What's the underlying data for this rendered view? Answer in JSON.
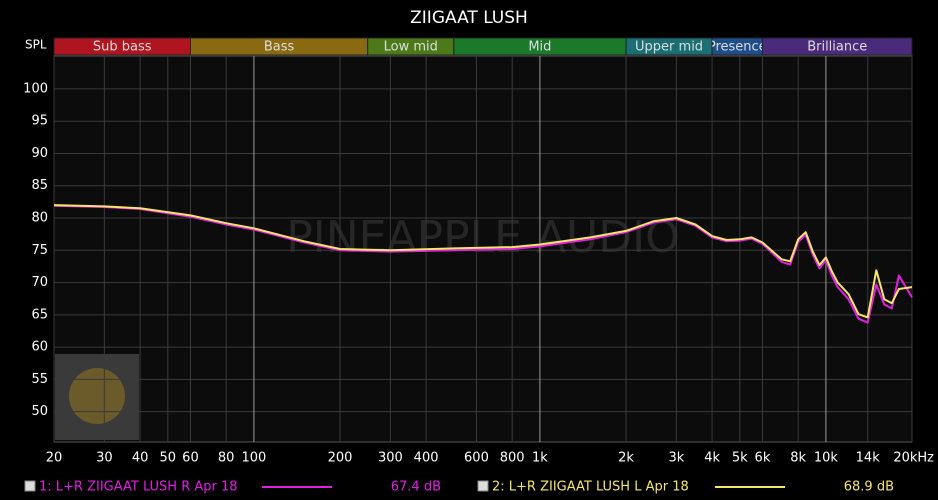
{
  "chart_data": {
    "type": "line",
    "title": "ZIIGAAT LUSH",
    "y_label": "SPL",
    "watermark": "PINEAPPLE AUDIO",
    "log_x": true,
    "grid": true,
    "xlim": [
      20,
      20000
    ],
    "ylim": [
      45.3,
      105.1
    ],
    "xticks": [
      {
        "value": 20,
        "label": "20"
      },
      {
        "value": 30,
        "label": "30"
      },
      {
        "value": 40,
        "label": "40"
      },
      {
        "value": 50,
        "label": "50"
      },
      {
        "value": 60,
        "label": "60"
      },
      {
        "value": 80,
        "label": "80"
      },
      {
        "value": 100,
        "label": "100"
      },
      {
        "value": 200,
        "label": "200"
      },
      {
        "value": 300,
        "label": "300"
      },
      {
        "value": 400,
        "label": "400"
      },
      {
        "value": 600,
        "label": "600"
      },
      {
        "value": 800,
        "label": "800"
      },
      {
        "value": 1000,
        "label": "1k"
      },
      {
        "value": 2000,
        "label": "2k"
      },
      {
        "value": 3000,
        "label": "3k"
      },
      {
        "value": 4000,
        "label": "4k"
      },
      {
        "value": 5000,
        "label": "5k"
      },
      {
        "value": 6000,
        "label": "6k"
      },
      {
        "value": 8000,
        "label": "8k"
      },
      {
        "value": 10000,
        "label": "10k"
      },
      {
        "value": 14000,
        "label": "14k"
      },
      {
        "value": 20000,
        "label": "20kHz"
      }
    ],
    "yticks": [
      50,
      55,
      60,
      65,
      70,
      75,
      80,
      85,
      90,
      95,
      100
    ],
    "bands": [
      {
        "name": "Sub bass",
        "from": 20,
        "to": 60,
        "color": "#b0141e"
      },
      {
        "name": "Bass",
        "from": 60,
        "to": 250,
        "color": "#8a6a10"
      },
      {
        "name": "Low mid",
        "from": 250,
        "to": 500,
        "color": "#4d7a18"
      },
      {
        "name": "Mid",
        "from": 500,
        "to": 2000,
        "color": "#1a7a2a"
      },
      {
        "name": "Upper mid",
        "from": 2000,
        "to": 4000,
        "color": "#1a6e74"
      },
      {
        "name": "Presence",
        "from": 4000,
        "to": 6000,
        "color": "#1f4e8a"
      },
      {
        "name": "Brilliance",
        "from": 6000,
        "to": 20000,
        "color": "#4a2a7a"
      }
    ],
    "x": [
      20,
      30,
      40,
      60,
      80,
      100,
      150,
      200,
      300,
      500,
      800,
      1000,
      1500,
      2000,
      2500,
      3000,
      3500,
      4000,
      4500,
      5000,
      5500,
      6000,
      7000,
      7500,
      8000,
      8500,
      9000,
      9500,
      10000,
      10500,
      11000,
      12000,
      13000,
      14000,
      15000,
      16000,
      17000,
      18000,
      20000
    ],
    "series": [
      {
        "name": "1: L+R ZIIGAAT LUSH R Apr 18",
        "level": "67.4 dB",
        "color": "#e020e0",
        "values": [
          81.9,
          81.7,
          81.4,
          80.2,
          79.0,
          78.2,
          76.2,
          75.0,
          74.8,
          75.0,
          75.2,
          75.6,
          76.7,
          77.8,
          79.3,
          79.8,
          78.8,
          77.0,
          76.4,
          76.5,
          76.8,
          76.0,
          73.2,
          72.8,
          76.3,
          77.4,
          74.3,
          72.2,
          73.5,
          71.0,
          69.3,
          67.4,
          64.4,
          63.8,
          69.7,
          66.6,
          66.0,
          71.1,
          67.7
        ]
      },
      {
        "name": "2: L+R ZIIGAAT LUSH L Apr 18",
        "level": "68.9 dB",
        "color": "#f5e66a",
        "values": [
          82.0,
          81.8,
          81.5,
          80.4,
          79.2,
          78.4,
          76.4,
          75.2,
          75.0,
          75.3,
          75.5,
          75.9,
          77.0,
          78.0,
          79.5,
          80.0,
          79.0,
          77.2,
          76.6,
          76.7,
          77.0,
          76.2,
          73.6,
          73.3,
          76.7,
          77.8,
          74.8,
          72.7,
          73.9,
          71.7,
          70.0,
          68.2,
          65.1,
          64.6,
          71.9,
          67.4,
          66.8,
          69.0,
          69.3
        ]
      }
    ]
  }
}
